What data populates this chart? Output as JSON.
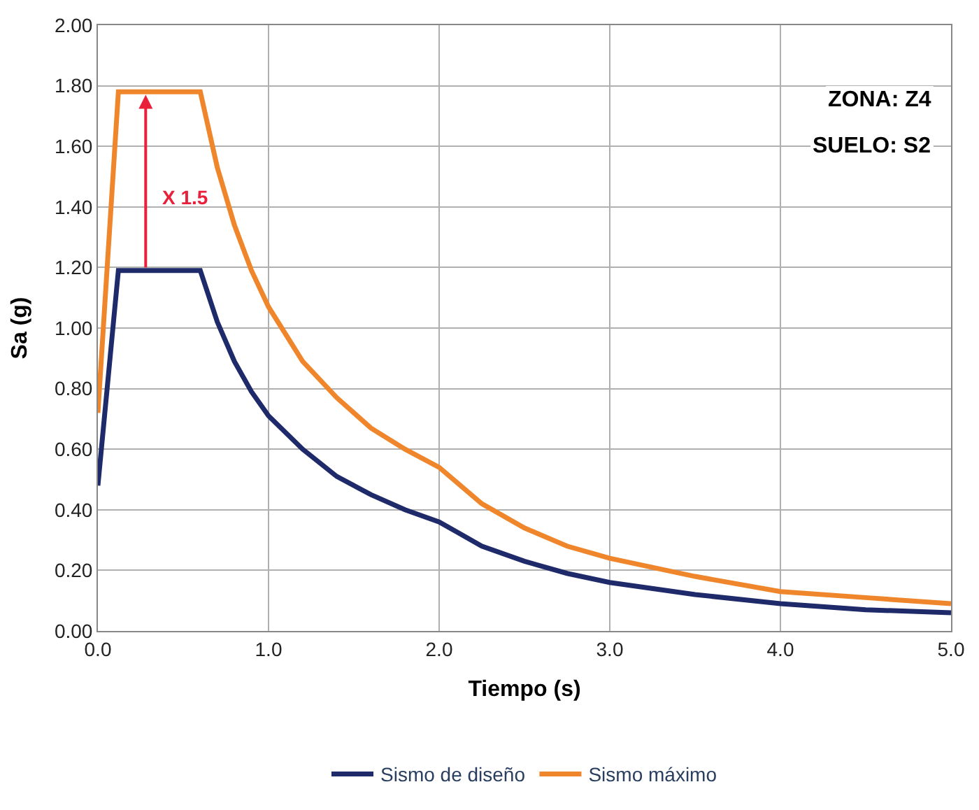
{
  "chart_data": {
    "type": "line",
    "xlabel": "Tiempo (s)",
    "ylabel": "Sa (g)",
    "x": [
      0,
      0.12,
      0.6,
      0.7,
      0.8,
      0.9,
      1.0,
      1.2,
      1.4,
      1.6,
      1.8,
      2.0,
      2.25,
      2.5,
      2.75,
      3.0,
      3.5,
      4.0,
      4.5,
      5.0
    ],
    "series": [
      {
        "name": "Sismo de diseño",
        "color": "#1f2a6b",
        "values": [
          0.48,
          1.19,
          1.19,
          1.02,
          0.89,
          0.79,
          0.71,
          0.6,
          0.51,
          0.45,
          0.4,
          0.36,
          0.28,
          0.23,
          0.19,
          0.16,
          0.12,
          0.09,
          0.07,
          0.06
        ]
      },
      {
        "name": "Sismo máximo",
        "color": "#f0862b",
        "values": [
          0.72,
          1.78,
          1.78,
          1.53,
          1.34,
          1.19,
          1.07,
          0.89,
          0.77,
          0.67,
          0.6,
          0.54,
          0.42,
          0.34,
          0.28,
          0.24,
          0.18,
          0.13,
          0.11,
          0.09
        ]
      }
    ],
    "xlim": [
      0,
      5
    ],
    "ylim": [
      0,
      2
    ],
    "xticks": [
      {
        "value": 0,
        "label": "0.0"
      },
      {
        "value": 1,
        "label": "1.0"
      },
      {
        "value": 2,
        "label": "2.0"
      },
      {
        "value": 3,
        "label": "3.0"
      },
      {
        "value": 4,
        "label": "4.0"
      },
      {
        "value": 5,
        "label": "5.0"
      }
    ],
    "yticks": [
      {
        "value": 0,
        "label": "0.00"
      },
      {
        "value": 0.2,
        "label": "0.20"
      },
      {
        "value": 0.4,
        "label": "0.40"
      },
      {
        "value": 0.6,
        "label": "0.60"
      },
      {
        "value": 0.8,
        "label": "0.80"
      },
      {
        "value": 1,
        "label": "1.00"
      },
      {
        "value": 1.2,
        "label": "1.20"
      },
      {
        "value": 1.4,
        "label": "1.40"
      },
      {
        "value": 1.6,
        "label": "1.60"
      },
      {
        "value": 1.8,
        "label": "1.80"
      },
      {
        "value": 2,
        "label": "2.00"
      }
    ],
    "annotations": [
      "ZONA: Z4",
      "SUELO: S2",
      "X 1.5"
    ],
    "grid": true,
    "legend": "bottom",
    "marker": "none",
    "line_style": "solid"
  }
}
